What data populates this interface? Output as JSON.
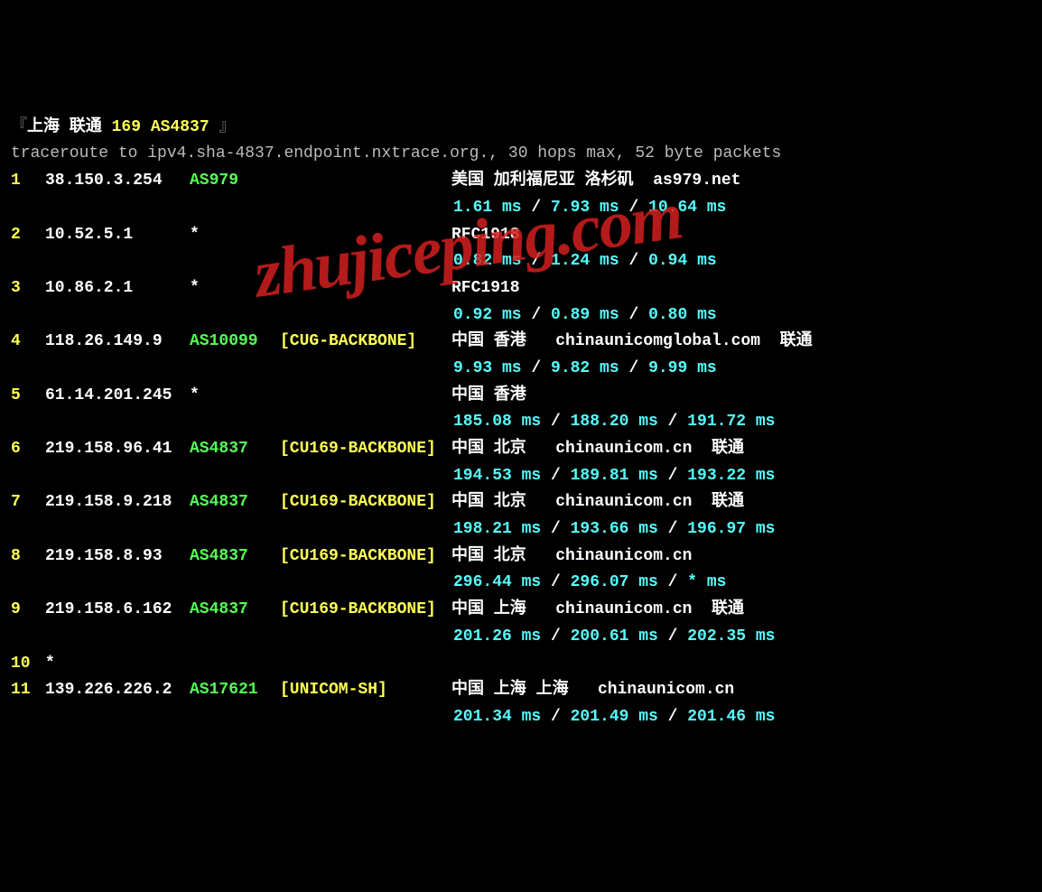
{
  "header": {
    "open_bracket": "『",
    "location": "上海 联通",
    "asn_line": "169 AS4837",
    "close_bracket": " 』"
  },
  "command": "traceroute to ipv4.sha-4837.endpoint.nxtrace.org., 30 hops max, 52 byte packets",
  "separator": " / ",
  "watermark": "zhujiceping.com",
  "hops": [
    {
      "n": "1",
      "ip": "38.150.3.254",
      "asn": "AS979",
      "backbone": "",
      "geo": "美国 加利福尼亚 洛杉矶  as979.net",
      "lat": [
        "1.61 ms",
        "7.93 ms",
        "10.64 ms"
      ]
    },
    {
      "n": "2",
      "ip": "10.52.5.1",
      "asn": "*",
      "backbone": "",
      "geo": "RFC1918",
      "lat": [
        "0.82 ms",
        "1.24 ms",
        "0.94 ms"
      ]
    },
    {
      "n": "3",
      "ip": "10.86.2.1",
      "asn": "*",
      "backbone": "",
      "geo": "RFC1918",
      "lat": [
        "0.92 ms",
        "0.89 ms",
        "0.80 ms"
      ]
    },
    {
      "n": "4",
      "ip": "118.26.149.9",
      "asn": "AS10099",
      "backbone": "[CUG-BACKBONE]",
      "geo": "中国 香港   chinaunicomglobal.com  联通",
      "lat": [
        "9.93 ms",
        "9.82 ms",
        "9.99 ms"
      ]
    },
    {
      "n": "5",
      "ip": "61.14.201.245",
      "asn": "*",
      "backbone": "",
      "geo": "中国 香港",
      "lat": [
        "185.08 ms",
        "188.20 ms",
        "191.72 ms"
      ]
    },
    {
      "n": "6",
      "ip": "219.158.96.41",
      "asn": "AS4837",
      "backbone": "[CU169-BACKBONE]",
      "geo": "中国 北京   chinaunicom.cn  联通",
      "lat": [
        "194.53 ms",
        "189.81 ms",
        "193.22 ms"
      ]
    },
    {
      "n": "7",
      "ip": "219.158.9.218",
      "asn": "AS4837",
      "backbone": "[CU169-BACKBONE]",
      "geo": "中国 北京   chinaunicom.cn  联通",
      "lat": [
        "198.21 ms",
        "193.66 ms",
        "196.97 ms"
      ]
    },
    {
      "n": "8",
      "ip": "219.158.8.93",
      "asn": "AS4837",
      "backbone": "[CU169-BACKBONE]",
      "geo": "中国 北京   chinaunicom.cn",
      "lat": [
        "296.44 ms",
        "296.07 ms",
        "* ms"
      ]
    },
    {
      "n": "9",
      "ip": "219.158.6.162",
      "asn": "AS4837",
      "backbone": "[CU169-BACKBONE]",
      "geo": "中国 上海   chinaunicom.cn  联通",
      "lat": [
        "201.26 ms",
        "200.61 ms",
        "202.35 ms"
      ]
    },
    {
      "n": "10",
      "ip": "*",
      "asn": "",
      "backbone": "",
      "geo": "",
      "lat": []
    },
    {
      "n": "11",
      "ip": "139.226.226.2",
      "asn": "AS17621",
      "backbone": "[UNICOM-SH]",
      "geo": "中国 上海 上海   chinaunicom.cn",
      "lat": [
        "201.34 ms",
        "201.49 ms",
        "201.46 ms"
      ]
    }
  ],
  "colors": {
    "bg": "#000000",
    "white": "#ffffff",
    "yellow": "#ffff55",
    "green": "#55ff55",
    "cyan": "#55ffff",
    "grey": "#bbbbbb",
    "watermark": "#d21e1e"
  }
}
